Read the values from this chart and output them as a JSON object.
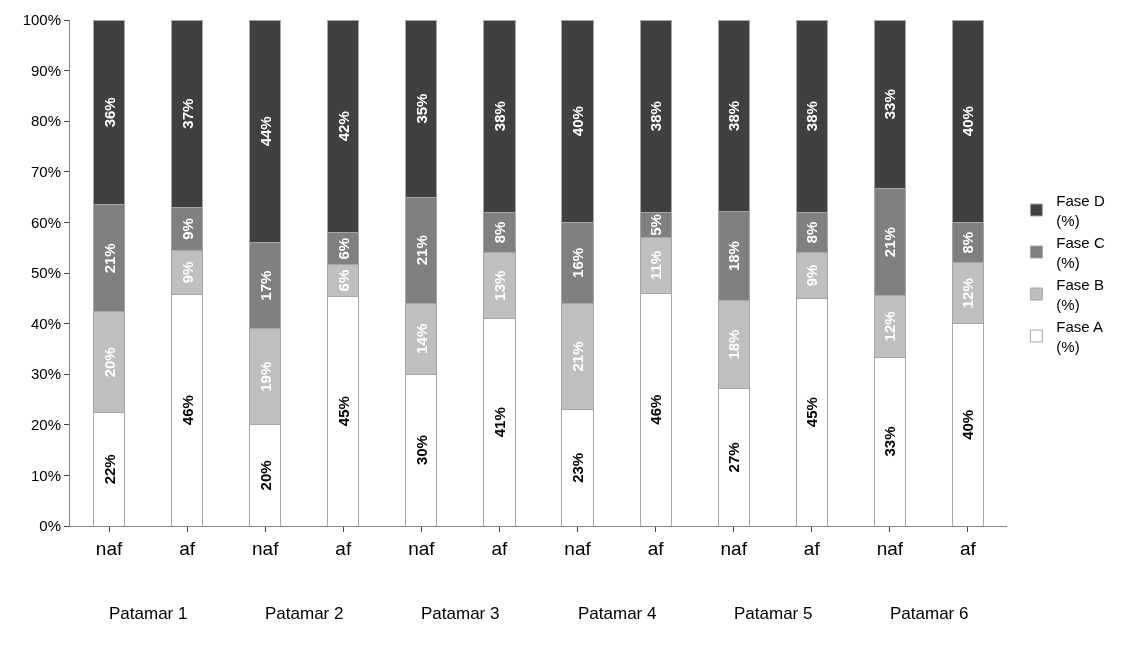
{
  "chart_data": {
    "type": "bar",
    "stacked": true,
    "categories": [
      "naf",
      "af",
      "naf",
      "af",
      "naf",
      "af",
      "naf",
      "af",
      "naf",
      "af",
      "naf",
      "af"
    ],
    "series": [
      {
        "name": "Fase A (%)",
        "color": "#ffffff",
        "values": [
          22.4,
          45.8,
          20,
          45.4,
          30,
          41,
          23,
          46,
          27.1,
          45,
          33.4,
          40
        ],
        "value_labels": [
          "22%",
          "46%",
          "20%",
          "45%",
          "30%",
          "41%",
          "23%",
          "46%",
          "27%",
          "45%",
          "33%",
          "40%"
        ]
      },
      {
        "name": "Fase B (%)",
        "color": "#bfbfbf",
        "values": [
          19.9,
          8.6,
          19,
          6.2,
          14,
          13,
          21,
          11,
          17.5,
          9,
          12.1,
          12
        ],
        "value_labels": [
          "20%",
          "9%",
          "19%",
          "6%",
          "14%",
          "13%",
          "21%",
          "11%",
          "18%",
          "9%",
          "12%",
          "12%"
        ]
      },
      {
        "name": "Fase C (%)",
        "color": "#808080",
        "values": [
          21.2,
          8.6,
          17,
          6.4,
          21,
          8,
          16,
          5,
          17.5,
          8,
          21.2,
          8
        ],
        "value_labels": [
          "21%",
          "9%",
          "17%",
          "6%",
          "21%",
          "8%",
          "16%",
          "5%",
          "18%",
          "8%",
          "21%",
          "8%"
        ]
      },
      {
        "name": "Fase D (%)",
        "color": "#404040",
        "values": [
          36.5,
          37,
          44,
          42,
          35,
          38,
          40,
          38,
          37.9,
          38,
          33.3,
          40
        ],
        "value_labels": [
          "36%",
          "37%",
          "44%",
          "42%",
          "35%",
          "38%",
          "40%",
          "38%",
          "38%",
          "38%",
          "33%",
          "40%"
        ]
      }
    ],
    "ylim": [
      0,
      100
    ],
    "yticks": [
      {
        "value": 0,
        "label": "0%"
      },
      {
        "value": 10,
        "label": "10%"
      },
      {
        "value": 20,
        "label": "20%"
      },
      {
        "value": 30,
        "label": "30%"
      },
      {
        "value": 40,
        "label": "40%"
      },
      {
        "value": 50,
        "label": "50%"
      },
      {
        "value": 60,
        "label": "60%"
      },
      {
        "value": 70,
        "label": "70%"
      },
      {
        "value": 80,
        "label": "80%"
      },
      {
        "value": 90,
        "label": "90%"
      },
      {
        "value": 100,
        "label": "100%"
      }
    ],
    "annotations": [
      "Patamar 1",
      "Patamar 2",
      "Patamar 3",
      "Patamar 4",
      "Patamar 5",
      "Patamar 6"
    ],
    "legend": "right"
  }
}
